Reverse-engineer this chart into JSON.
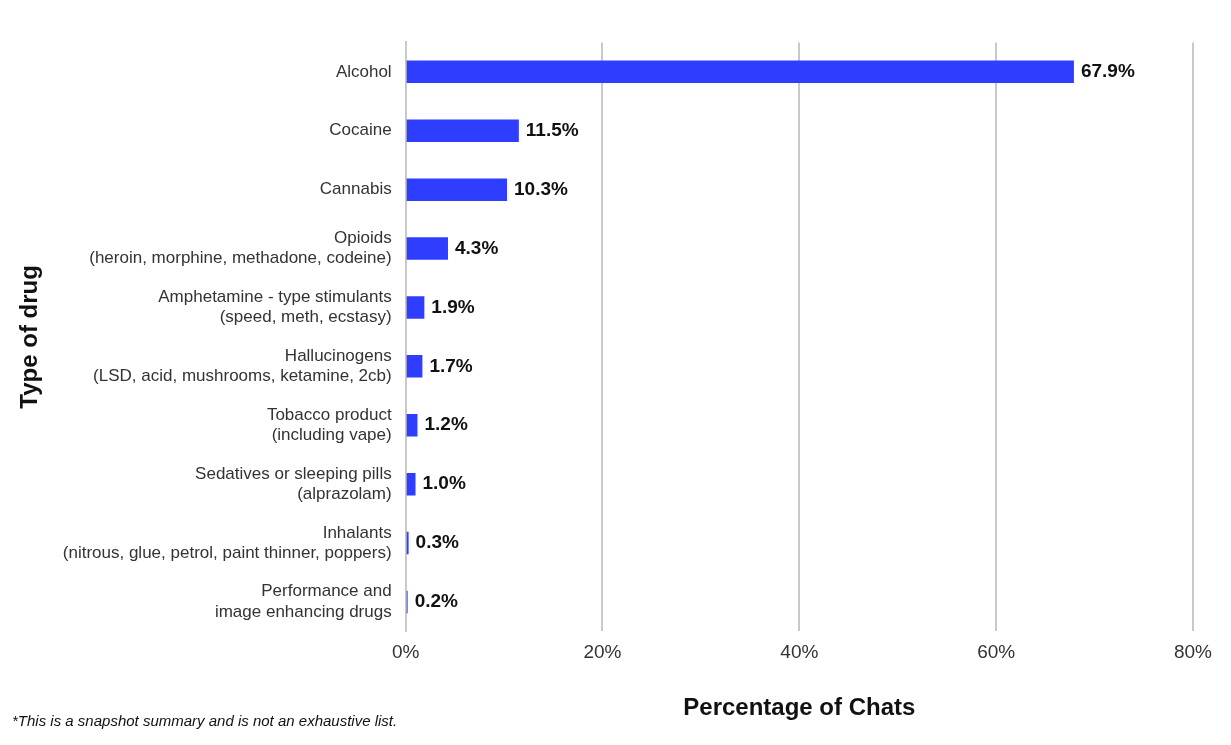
{
  "chart_data": {
    "type": "bar",
    "orientation": "horizontal",
    "categories": [
      "Alcohol",
      "Cocaine",
      "Cannabis",
      "Opioids\n(heroin, morphine, methadone, codeine)",
      "Amphetamine - type stimulants\n(speed, meth, ecstasy)",
      "Hallucinogens\n(LSD, acid, mushrooms, ketamine, 2cb)",
      "Tobacco product\n(including vape)",
      "Sedatives or sleeping pills\n(alprazolam)",
      "Inhalants\n(nitrous, glue, petrol, paint thinner, poppers)",
      "Performance and\nimage enhancing drugs"
    ],
    "values": [
      67.9,
      11.5,
      10.3,
      4.3,
      1.9,
      1.7,
      1.2,
      1.0,
      0.3,
      0.2
    ],
    "value_labels": [
      "67.9%",
      "11.5%",
      "10.3%",
      "4.3%",
      "1.9%",
      "1.7%",
      "1.2%",
      "1.0%",
      "0.3%",
      "0.2%"
    ],
    "color": "#2f3dff",
    "xlim": [
      0,
      80
    ],
    "xticks": [
      {
        "value": 0,
        "label": "0%"
      },
      {
        "value": 20,
        "label": "20%"
      },
      {
        "value": 40,
        "label": "40%"
      },
      {
        "value": 60,
        "label": "60%"
      },
      {
        "value": 80,
        "label": "80%"
      }
    ],
    "xlabel": "Percentage of Chats",
    "ylabel": "Type of drug",
    "grid": "x",
    "annotations": [
      "*This is a snapshot summary and is not an exhaustive list."
    ]
  }
}
